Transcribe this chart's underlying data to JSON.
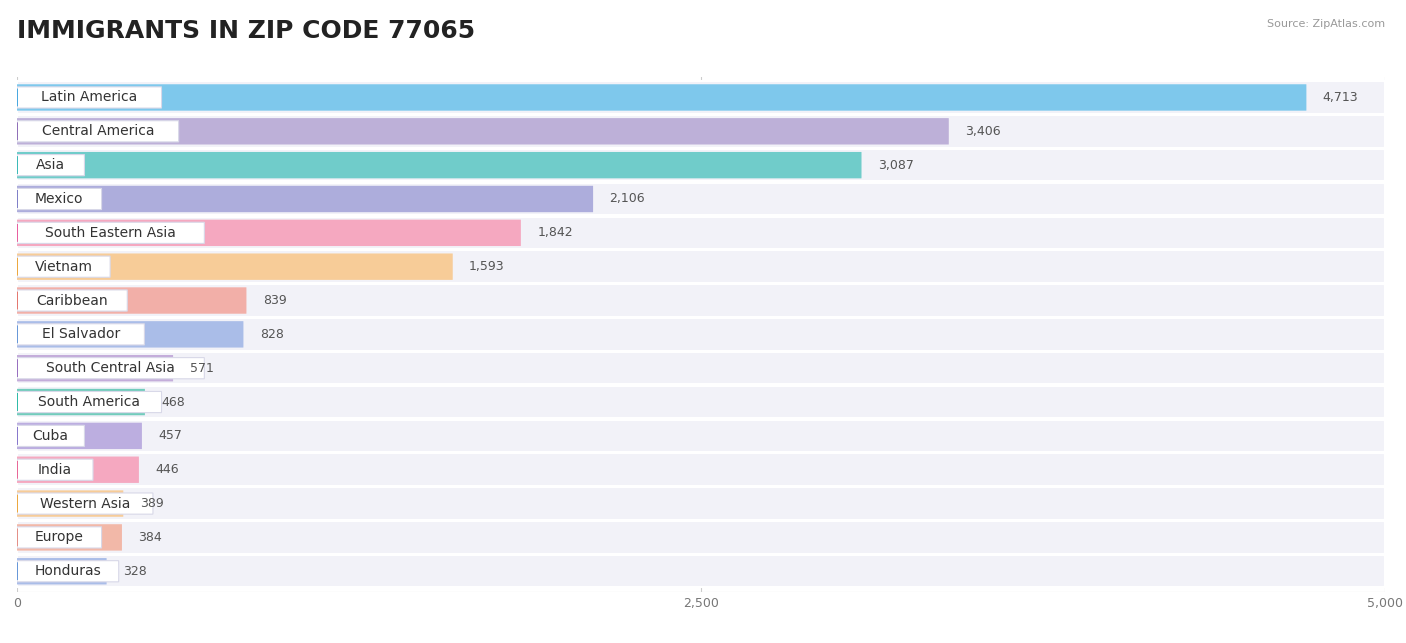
{
  "title": "IMMIGRANTS IN ZIP CODE 77065",
  "source_text": "Source: ZipAtlas.com",
  "categories": [
    "Latin America",
    "Central America",
    "Asia",
    "Mexico",
    "South Eastern Asia",
    "Vietnam",
    "Caribbean",
    "El Salvador",
    "South Central Asia",
    "South America",
    "Cuba",
    "India",
    "Western Asia",
    "Europe",
    "Honduras"
  ],
  "values": [
    4713,
    3406,
    3087,
    2106,
    1842,
    1593,
    839,
    828,
    571,
    468,
    457,
    446,
    389,
    384,
    328
  ],
  "bar_colors": [
    "#7EC8EC",
    "#BDB0D8",
    "#70CCCA",
    "#ADADDC",
    "#F5A8C0",
    "#F7CC98",
    "#F2AFA8",
    "#AABDE8",
    "#C4ADDA",
    "#72CCBC",
    "#BCAEE0",
    "#F5A8C0",
    "#F7CC98",
    "#F2B8A8",
    "#AABDE8"
  ],
  "dot_colors": [
    "#4AA8E0",
    "#9070B8",
    "#3DBAB8",
    "#8080C8",
    "#E860A0",
    "#ECA840",
    "#E47870",
    "#6898D8",
    "#9870C0",
    "#30BBA8",
    "#8878CC",
    "#E86898",
    "#ECA840",
    "#E49088",
    "#6898D8"
  ],
  "xlim": [
    0,
    5000
  ],
  "xticks": [
    0,
    2500,
    5000
  ],
  "xtick_labels": [
    "0",
    "2,500",
    "5,000"
  ],
  "background_color": "#FFFFFF",
  "row_bg_color": "#F2F2F8",
  "title_fontsize": 18,
  "label_fontsize": 10,
  "value_fontsize": 9
}
